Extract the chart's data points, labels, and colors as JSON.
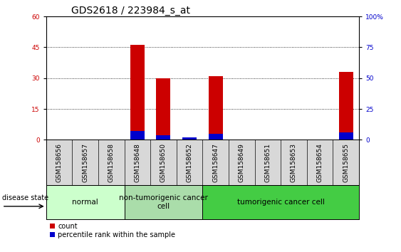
{
  "title": "GDS2618 / 223984_s_at",
  "samples": [
    "GSM158656",
    "GSM158657",
    "GSM158658",
    "GSM158648",
    "GSM158650",
    "GSM158652",
    "GSM158647",
    "GSM158649",
    "GSM158651",
    "GSM158653",
    "GSM158654",
    "GSM158655"
  ],
  "count_values": [
    0,
    0,
    0,
    46,
    30,
    1,
    31,
    0,
    0,
    0,
    0,
    33
  ],
  "percentile_values": [
    0,
    0,
    0,
    7,
    4,
    2,
    5,
    0,
    0,
    0,
    0,
    6
  ],
  "groups": [
    {
      "label": "normal",
      "start": 0,
      "end": 3,
      "color": "#ccffcc"
    },
    {
      "label": "non-tumorigenic cancer\ncell",
      "start": 3,
      "end": 6,
      "color": "#aaddaa"
    },
    {
      "label": "tumorigenic cancer cell",
      "start": 6,
      "end": 12,
      "color": "#44cc44"
    }
  ],
  "ylim_left": [
    0,
    60
  ],
  "ylim_right": [
    0,
    100
  ],
  "yticks_left": [
    0,
    15,
    30,
    45,
    60
  ],
  "yticks_right": [
    0,
    25,
    50,
    75,
    100
  ],
  "yticklabels_right": [
    "0",
    "25",
    "50",
    "75",
    "100%"
  ],
  "bar_color_red": "#cc0000",
  "bar_color_blue": "#0000cc",
  "bar_width": 0.55,
  "legend_label_red": "count",
  "legend_label_blue": "percentile rank within the sample",
  "disease_state_label": "disease state",
  "title_fontsize": 10,
  "tick_fontsize": 6.5,
  "group_fontsize": 7.5,
  "label_bg_color": "#d8d8d8"
}
